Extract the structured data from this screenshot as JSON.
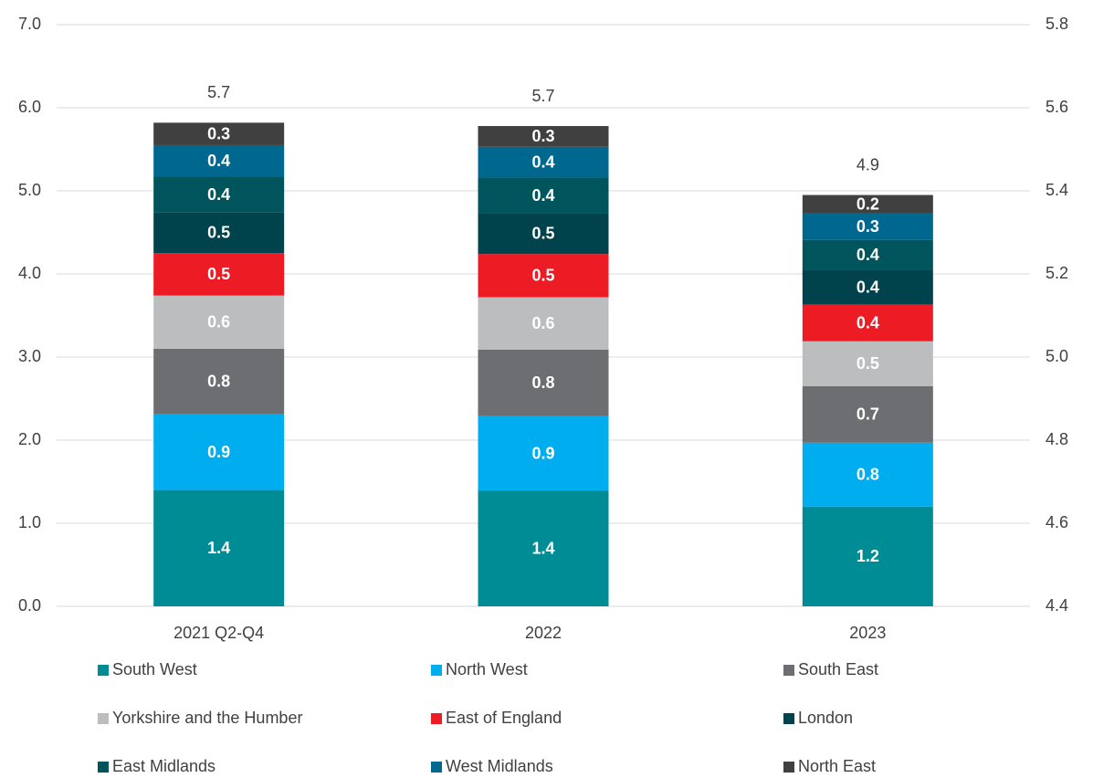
{
  "chart_data": {
    "type": "stacked_bar",
    "categories": [
      "2021 Q2-Q4",
      "2022",
      "2023"
    ],
    "series": [
      {
        "name": "South West",
        "color": "#008c95",
        "values": [
          1.4,
          1.39,
          1.2
        ],
        "value_labels": [
          "1.4",
          "1.4",
          "1.2"
        ]
      },
      {
        "name": "North West",
        "color": "#00adee",
        "values": [
          0.91,
          0.9,
          0.77
        ],
        "value_labels": [
          "0.9",
          "0.9",
          "0.8"
        ]
      },
      {
        "name": "South East",
        "color": "#6d6e71",
        "values": [
          0.79,
          0.8,
          0.68
        ],
        "value_labels": [
          "0.8",
          "0.8",
          "0.7"
        ]
      },
      {
        "name": "Yorkshire and the Humber",
        "color": "#bcbdbe",
        "values": [
          0.64,
          0.63,
          0.54
        ],
        "value_labels": [
          "0.6",
          "0.6",
          "0.5"
        ]
      },
      {
        "name": "East of England",
        "color": "#ed1c24",
        "values": [
          0.51,
          0.52,
          0.44
        ],
        "value_labels": [
          "0.5",
          "0.5",
          "0.4"
        ]
      },
      {
        "name": "London",
        "color": "#00434c",
        "values": [
          0.49,
          0.49,
          0.42
        ],
        "value_labels": [
          "0.5",
          "0.5",
          "0.4"
        ]
      },
      {
        "name": "East Midlands",
        "color": "#00555c",
        "values": [
          0.43,
          0.43,
          0.36
        ],
        "value_labels": [
          "0.4",
          "0.4",
          "0.4"
        ]
      },
      {
        "name": "West Midlands",
        "color": "#00678f",
        "values": [
          0.38,
          0.37,
          0.32
        ],
        "value_labels": [
          "0.4",
          "0.4",
          "0.3"
        ]
      },
      {
        "name": "North East",
        "color": "#404040",
        "values": [
          0.27,
          0.25,
          0.22
        ],
        "value_labels": [
          "0.3",
          "0.3",
          "0.2"
        ]
      }
    ],
    "totals": [
      5.7,
      5.7,
      4.9
    ],
    "ylim": [
      0,
      7
    ],
    "yticks": [
      {
        "value": 0,
        "label": "0.0"
      },
      {
        "value": 1,
        "label": "1.0"
      },
      {
        "value": 2,
        "label": "2.0"
      },
      {
        "value": 3,
        "label": "3.0"
      },
      {
        "value": 4,
        "label": "4.0"
      },
      {
        "value": 5,
        "label": "5.0"
      },
      {
        "value": 6,
        "label": "6.0"
      },
      {
        "value": 7,
        "label": "7.0"
      }
    ],
    "y2lim": [
      4.4,
      5.8
    ],
    "y2ticks": [
      4.4,
      4.6,
      4.8,
      5.0,
      5.2,
      5.4,
      5.6,
      5.8
    ],
    "grid": true,
    "legend": "bottom"
  }
}
